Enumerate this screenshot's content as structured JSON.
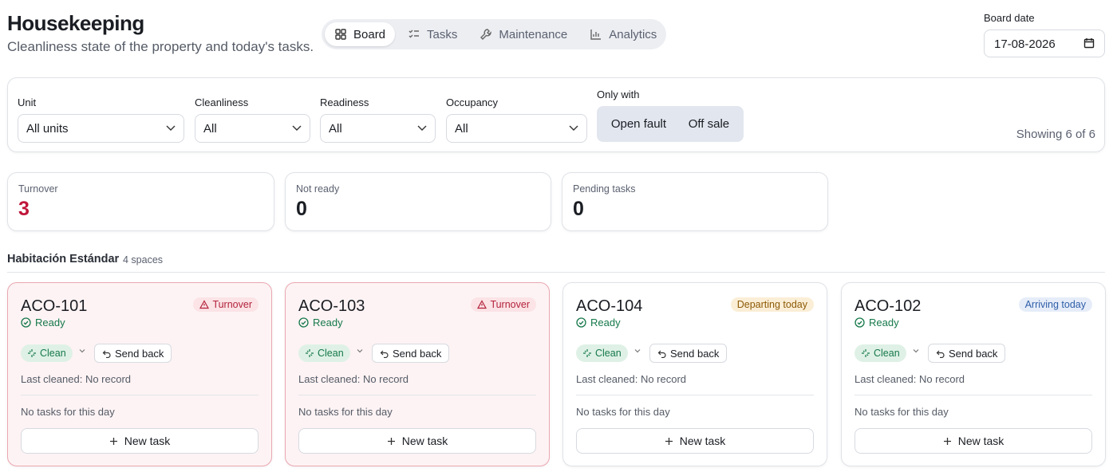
{
  "header": {
    "title": "Housekeeping",
    "subtitle": "Cleanliness state of the property and today's tasks."
  },
  "tabs": [
    "Board",
    "Tasks",
    "Maintenance",
    "Analytics"
  ],
  "board_date": {
    "label": "Board date",
    "value": "17-08-2026"
  },
  "filters": [
    {
      "label": "Unit",
      "value": "All units"
    },
    {
      "label": "Cleanliness",
      "value": "All"
    },
    {
      "label": "Readiness",
      "value": "All"
    },
    {
      "label": "Occupancy",
      "value": "All"
    }
  ],
  "only_with": {
    "label": "Only with",
    "options": [
      "Open fault",
      "Off sale"
    ]
  },
  "showing": "Showing 6 of 6",
  "stats": [
    {
      "label": "Turnover",
      "value": 3
    },
    {
      "label": "Not ready",
      "value": 0
    },
    {
      "label": "Pending tasks",
      "value": 0
    }
  ],
  "group": {
    "title": "Habitación Estándar",
    "count": "4 spaces"
  },
  "cards": [
    {
      "unit": "ACO-101",
      "badge": "Turnover",
      "status": "Ready",
      "cleanliness": "Clean",
      "send_back": "Send back",
      "last_cleaned": "Last cleaned: No record",
      "tasks": "No tasks for this day",
      "new_task": "New task"
    },
    {
      "unit": "ACO-103",
      "badge": "Turnover",
      "status": "Ready",
      "cleanliness": "Clean",
      "send_back": "Send back",
      "last_cleaned": "Last cleaned: No record",
      "tasks": "No tasks for this day",
      "new_task": "New task"
    },
    {
      "unit": "ACO-104",
      "badge": "Departing today",
      "status": "Ready",
      "cleanliness": "Clean",
      "send_back": "Send back",
      "last_cleaned": "Last cleaned: No record",
      "tasks": "No tasks for this day",
      "new_task": "New task"
    },
    {
      "unit": "ACO-102",
      "badge": "Arriving today",
      "status": "Ready",
      "cleanliness": "Clean",
      "send_back": "Send back",
      "last_cleaned": "Last cleaned: No record",
      "tasks": "No tasks for this day",
      "new_task": "New task"
    }
  ]
}
